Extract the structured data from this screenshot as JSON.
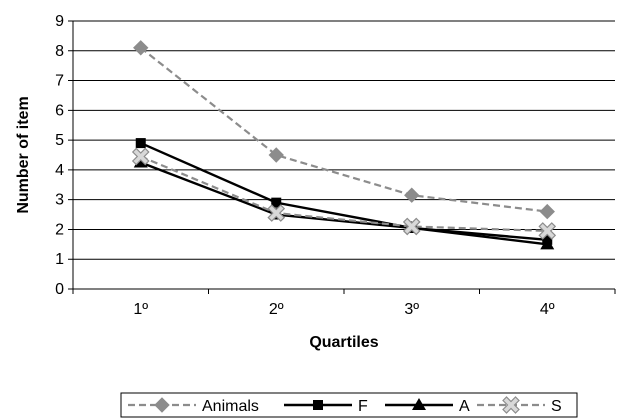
{
  "chart_data": {
    "type": "line",
    "categories": [
      "1º",
      "2º",
      "3º",
      "4º"
    ],
    "series": [
      {
        "name": "Animals",
        "values": [
          8.1,
          4.5,
          3.15,
          2.6
        ],
        "color": "#8c8c8c",
        "dashed": true,
        "marker": "diamond"
      },
      {
        "name": "F",
        "values": [
          4.9,
          2.9,
          2.05,
          1.65
        ],
        "color": "#000000",
        "dashed": false,
        "marker": "square"
      },
      {
        "name": "A",
        "values": [
          4.25,
          2.5,
          2.05,
          1.5
        ],
        "color": "#000000",
        "dashed": false,
        "marker": "triangle"
      },
      {
        "name": "S",
        "values": [
          4.45,
          2.55,
          2.1,
          1.95
        ],
        "color": "#8c8c8c",
        "dashed": true,
        "marker": "x"
      }
    ],
    "yticks": [
      "0",
      "1",
      "2",
      "3",
      "4",
      "5",
      "6",
      "7",
      "8",
      "9"
    ],
    "ylim": [
      0,
      9
    ],
    "xlabel": "Quartiles",
    "ylabel": "Number of item",
    "grid": true,
    "legend_position": "bottom"
  }
}
